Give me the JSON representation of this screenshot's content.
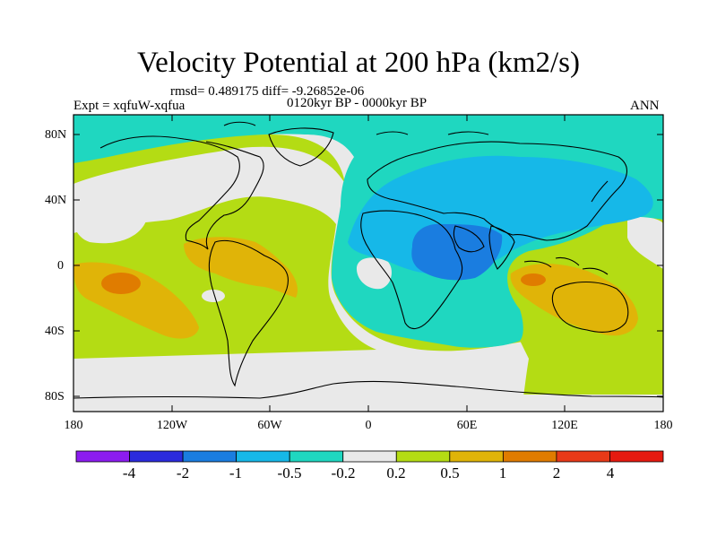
{
  "title": "Velocity Potential at 200 hPa (km2/s)",
  "stats": "rmsd= 0.489175 diff= -9.26852e-06",
  "period": "0120kyr BP - 0000kyr BP",
  "experiment": "Expt = xqfuW-xqfua",
  "season": "ANN",
  "lat_labels": [
    "80N",
    "40N",
    "0",
    "40S",
    "80S"
  ],
  "lon_labels": [
    "180",
    "120W",
    "60W",
    "0",
    "60E",
    "120E",
    "180"
  ],
  "colorbar": {
    "labels": [
      "-4",
      "-2",
      "-1",
      "-0.5",
      "-0.2",
      "0.2",
      "0.5",
      "1",
      "2",
      "4"
    ],
    "colors": [
      "#8c1cf0",
      "#2b2bdd",
      "#1a7de0",
      "#16b8e8",
      "#1fd7c0",
      "#e9e9e9",
      "#b4dc14",
      "#e0b408",
      "#e07c00",
      "#e83a18",
      "#e61a10"
    ]
  },
  "field_colors": {
    "neutral": "#e9e9e9",
    "weak_negative": "#1fd7c0",
    "moderate_negative": "#16b8e8",
    "strong_negative": "#1a7de0",
    "weak_positive": "#b4dc14",
    "moderate_positive": "#e0b408",
    "strong_positive": "#e07c00"
  }
}
